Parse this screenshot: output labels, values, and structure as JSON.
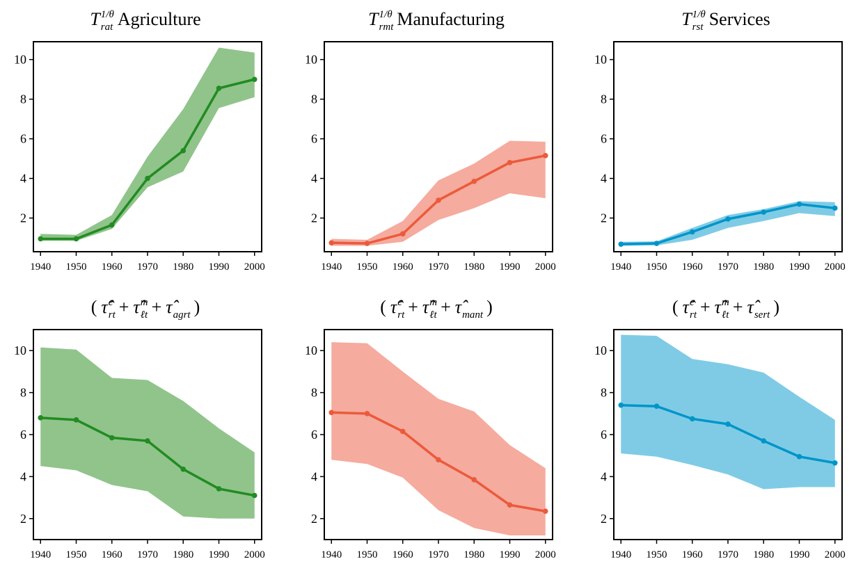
{
  "chart_data": [
    {
      "type": "line",
      "title": [
        {
          "text": "T",
          "pos": "base"
        },
        {
          "text": "1/θ",
          "pos": "sup"
        },
        {
          "text": "rat",
          "pos": "sub"
        },
        {
          "text": "Agriculture",
          "pos": "normal"
        }
      ],
      "x": [
        1940,
        1950,
        1960,
        1970,
        1980,
        1990,
        2000
      ],
      "xlim": [
        1938,
        2002
      ],
      "xticks": [
        1940,
        1950,
        1960,
        1970,
        1980,
        1990,
        2000
      ],
      "ylim": [
        0.3,
        10.9
      ],
      "yticks": [
        2,
        4,
        6,
        8,
        10
      ],
      "series": [
        {
          "color": "#228b22",
          "band_color": "#90c48b",
          "values": [
            0.95,
            0.95,
            1.65,
            4.0,
            5.4,
            8.55,
            9.0
          ],
          "lower": [
            0.85,
            0.85,
            1.45,
            3.55,
            4.35,
            7.55,
            8.1
          ],
          "upper": [
            1.2,
            1.15,
            2.15,
            5.1,
            7.5,
            10.6,
            10.35
          ]
        }
      ]
    },
    {
      "type": "line",
      "title": [
        {
          "text": "T",
          "pos": "base"
        },
        {
          "text": "1/θ",
          "pos": "sup"
        },
        {
          "text": "rmt",
          "pos": "sub"
        },
        {
          "text": "Manufacturing",
          "pos": "normal"
        }
      ],
      "x": [
        1940,
        1950,
        1960,
        1970,
        1980,
        1990,
        2000
      ],
      "xlim": [
        1938,
        2002
      ],
      "xticks": [
        1940,
        1950,
        1960,
        1970,
        1980,
        1990,
        2000
      ],
      "ylim": [
        0.3,
        10.9
      ],
      "yticks": [
        2,
        4,
        6,
        8,
        10
      ],
      "series": [
        {
          "color": "#eb5a3c",
          "band_color": "#f5ab9e",
          "values": [
            0.75,
            0.72,
            1.2,
            2.9,
            3.85,
            4.8,
            5.15
          ],
          "lower": [
            0.6,
            0.6,
            0.8,
            1.9,
            2.5,
            3.25,
            3.0
          ],
          "upper": [
            0.95,
            0.9,
            1.85,
            3.9,
            4.75,
            5.9,
            5.85
          ]
        }
      ]
    },
    {
      "type": "line",
      "title": [
        {
          "text": "T",
          "pos": "base"
        },
        {
          "text": "1/θ",
          "pos": "sup"
        },
        {
          "text": "rst",
          "pos": "sub"
        },
        {
          "text": "Services",
          "pos": "normal"
        }
      ],
      "x": [
        1940,
        1950,
        1960,
        1970,
        1980,
        1990,
        2000
      ],
      "xlim": [
        1938,
        2002
      ],
      "xticks": [
        1940,
        1950,
        1960,
        1970,
        1980,
        1990,
        2000
      ],
      "ylim": [
        0.3,
        10.9
      ],
      "yticks": [
        2,
        4,
        6,
        8,
        10
      ],
      "series": [
        {
          "color": "#0095c8",
          "band_color": "#7fcbe6",
          "values": [
            0.68,
            0.72,
            1.3,
            1.95,
            2.3,
            2.7,
            2.5
          ],
          "lower": [
            0.6,
            0.62,
            0.9,
            1.5,
            1.85,
            2.25,
            2.1
          ],
          "upper": [
            0.8,
            0.82,
            1.5,
            2.15,
            2.45,
            2.85,
            2.8
          ]
        }
      ]
    },
    {
      "type": "line",
      "title": [
        {
          "text": "(",
          "pos": "normal"
        },
        {
          "text": "τ̂",
          "pos": "base"
        },
        {
          "text": "e",
          "pos": "sup"
        },
        {
          "text": "rt",
          "pos": "sub"
        },
        {
          "text": "+",
          "pos": "normal"
        },
        {
          "text": "τ̂",
          "pos": "base"
        },
        {
          "text": "m",
          "pos": "sup"
        },
        {
          "text": "ℓt",
          "pos": "sub"
        },
        {
          "text": "+",
          "pos": "normal"
        },
        {
          "text": "τ̂",
          "pos": "base"
        },
        {
          "text": "agrt",
          "pos": "sub"
        },
        {
          "text": ")",
          "pos": "normal"
        }
      ],
      "x": [
        1940,
        1950,
        1960,
        1970,
        1980,
        1990,
        2000
      ],
      "xlim": [
        1938,
        2002
      ],
      "xticks": [
        1940,
        1950,
        1960,
        1970,
        1980,
        1990,
        2000
      ],
      "ylim": [
        1,
        11
      ],
      "yticks": [
        2,
        4,
        6,
        8,
        10
      ],
      "series": [
        {
          "color": "#228b22",
          "band_color": "#90c48b",
          "values": [
            6.8,
            6.7,
            5.85,
            5.7,
            4.35,
            3.42,
            3.1
          ],
          "lower": [
            4.5,
            4.3,
            3.6,
            3.3,
            2.1,
            2.0,
            2.0
          ],
          "upper": [
            10.15,
            10.05,
            8.7,
            8.6,
            7.6,
            6.3,
            5.15
          ]
        }
      ]
    },
    {
      "type": "line",
      "title": [
        {
          "text": "(",
          "pos": "normal"
        },
        {
          "text": "τ̂",
          "pos": "base"
        },
        {
          "text": "e",
          "pos": "sup"
        },
        {
          "text": "rt",
          "pos": "sub"
        },
        {
          "text": "+",
          "pos": "normal"
        },
        {
          "text": "τ̂",
          "pos": "base"
        },
        {
          "text": "m",
          "pos": "sup"
        },
        {
          "text": "ℓt",
          "pos": "sub"
        },
        {
          "text": "+",
          "pos": "normal"
        },
        {
          "text": "τ̂",
          "pos": "base"
        },
        {
          "text": "mant",
          "pos": "sub"
        },
        {
          "text": ")",
          "pos": "normal"
        }
      ],
      "x": [
        1940,
        1950,
        1960,
        1970,
        1980,
        1990,
        2000
      ],
      "xlim": [
        1938,
        2002
      ],
      "xticks": [
        1940,
        1950,
        1960,
        1970,
        1980,
        1990,
        2000
      ],
      "ylim": [
        1,
        11
      ],
      "yticks": [
        2,
        4,
        6,
        8,
        10
      ],
      "series": [
        {
          "color": "#eb5a3c",
          "band_color": "#f5ab9e",
          "values": [
            7.05,
            7.0,
            6.15,
            4.8,
            3.85,
            2.65,
            2.35
          ],
          "lower": [
            4.8,
            4.6,
            3.95,
            2.4,
            1.55,
            1.2,
            1.2
          ],
          "upper": [
            10.4,
            10.35,
            9.0,
            7.7,
            7.1,
            5.5,
            4.4
          ]
        }
      ]
    },
    {
      "type": "line",
      "title": [
        {
          "text": "(",
          "pos": "normal"
        },
        {
          "text": "τ̂",
          "pos": "base"
        },
        {
          "text": "e",
          "pos": "sup"
        },
        {
          "text": "rt",
          "pos": "sub"
        },
        {
          "text": "+",
          "pos": "normal"
        },
        {
          "text": "τ̂",
          "pos": "base"
        },
        {
          "text": "m",
          "pos": "sup"
        },
        {
          "text": "ℓt",
          "pos": "sub"
        },
        {
          "text": "+",
          "pos": "normal"
        },
        {
          "text": "τ̂",
          "pos": "base"
        },
        {
          "text": "sert",
          "pos": "sub"
        },
        {
          "text": ")",
          "pos": "normal"
        }
      ],
      "x": [
        1940,
        1950,
        1960,
        1970,
        1980,
        1990,
        2000
      ],
      "xlim": [
        1938,
        2002
      ],
      "xticks": [
        1940,
        1950,
        1960,
        1970,
        1980,
        1990,
        2000
      ],
      "ylim": [
        1,
        11
      ],
      "yticks": [
        2,
        4,
        6,
        8,
        10
      ],
      "series": [
        {
          "color": "#0095c8",
          "band_color": "#7fcbe6",
          "values": [
            7.4,
            7.35,
            6.75,
            6.5,
            5.7,
            4.95,
            4.65
          ],
          "lower": [
            5.1,
            4.95,
            4.55,
            4.1,
            3.4,
            3.5,
            3.5
          ],
          "upper": [
            10.75,
            10.7,
            9.6,
            9.35,
            8.95,
            7.8,
            6.7
          ]
        }
      ]
    }
  ]
}
